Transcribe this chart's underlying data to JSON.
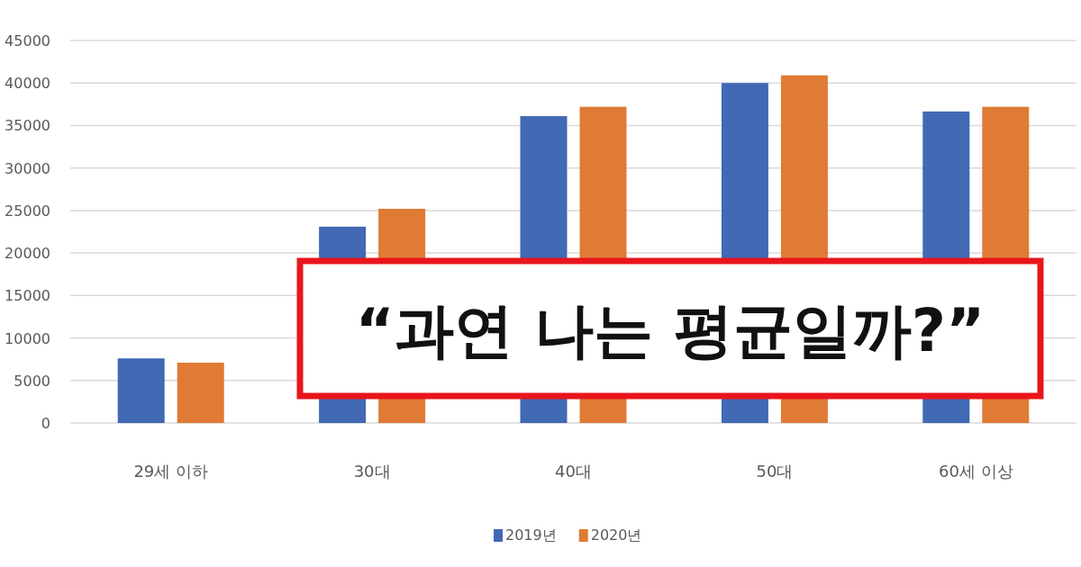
{
  "chart_data": {
    "type": "bar",
    "categories": [
      "29세 이하",
      "30대",
      "40대",
      "50대",
      "60세 이상"
    ],
    "series": [
      {
        "name": "2019년",
        "color": "#4169b4",
        "values": [
          7600,
          23100,
          36100,
          40000,
          36650
        ]
      },
      {
        "name": "2020년",
        "color": "#e07b35",
        "values": [
          7100,
          25200,
          37200,
          40900,
          37200
        ]
      }
    ],
    "ylim": [
      0,
      45000
    ],
    "yticks": [
      0,
      5000,
      10000,
      15000,
      20000,
      25000,
      30000,
      35000,
      40000,
      45000
    ],
    "grid": "y",
    "legend": "bottom",
    "annotations": [
      "“과연 나는 평균일까?”"
    ]
  }
}
